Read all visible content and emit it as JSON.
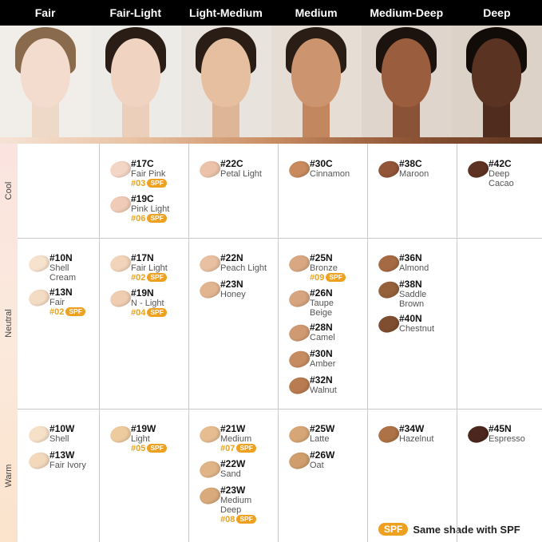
{
  "columns": [
    "Fair",
    "Fair-Light",
    "Light-Medium",
    "Medium",
    "Medium-Deep",
    "Deep"
  ],
  "rows": [
    {
      "label": "Cool",
      "cells": [
        [],
        [
          {
            "code": "#17C",
            "name": "Fair Pink",
            "color": "#f4d6c6",
            "spf": {
              "code": "#03",
              "badge": "SPF"
            }
          },
          {
            "code": "#19C",
            "name": "Pink Light",
            "color": "#f0ccb8",
            "spf": {
              "code": "#06",
              "badge": "SPF"
            }
          }
        ],
        [
          {
            "code": "#22C",
            "name": "Petal Light",
            "color": "#ecc3aa"
          }
        ],
        [
          {
            "code": "#30C",
            "name": "Cinnamon",
            "color": "#c88a5e"
          }
        ],
        [
          {
            "code": "#38C",
            "name": "Maroon",
            "color": "#925538"
          }
        ],
        [
          {
            "code": "#42C",
            "name": "Deep Cacao",
            "color": "#5e3223"
          }
        ]
      ]
    },
    {
      "label": "Neutral",
      "cells": [
        [
          {
            "code": "#10N",
            "name": "Shell Cream",
            "color": "#f7e2cd"
          },
          {
            "code": "#13N",
            "name": "Fair",
            "color": "#f4dbc4",
            "spf": {
              "code": "#02",
              "badge": "SPF"
            }
          }
        ],
        [
          {
            "code": "#17N",
            "name": "Fair Light",
            "color": "#f2d4bb",
            "spf": {
              "code": "#02",
              "badge": "SPF"
            }
          },
          {
            "code": "#19N",
            "name": "N - Light",
            "color": "#efcdb1",
            "spf": {
              "code": "#04",
              "badge": "SPF"
            }
          }
        ],
        [
          {
            "code": "#22N",
            "name": "Peach Light",
            "color": "#e9c0a2"
          },
          {
            "code": "#23N",
            "name": "Honey",
            "color": "#e2b591"
          }
        ],
        [
          {
            "code": "#25N",
            "name": "Bronze",
            "color": "#d9a883",
            "spf": {
              "code": "#09",
              "badge": "SPF"
            }
          },
          {
            "code": "#26N",
            "name": "Taupe Beige",
            "color": "#d6a47e"
          },
          {
            "code": "#28N",
            "name": "Camel",
            "color": "#cf9a72"
          },
          {
            "code": "#30N",
            "name": "Amber",
            "color": "#c68c61"
          },
          {
            "code": "#32N",
            "name": "Walnut",
            "color": "#b97b50"
          }
        ],
        [
          {
            "code": "#36N",
            "name": "Almond",
            "color": "#a56a43"
          },
          {
            "code": "#38N",
            "name": "Saddle Brown",
            "color": "#95603c"
          },
          {
            "code": "#40N",
            "name": "Chestnut",
            "color": "#7f4d2f"
          }
        ],
        []
      ]
    },
    {
      "label": "Warm",
      "cells": [
        [
          {
            "code": "#10W",
            "name": "Shell",
            "color": "#f6e0c8"
          },
          {
            "code": "#13W",
            "name": "Fair Ivory",
            "color": "#f3d8bc"
          }
        ],
        [
          {
            "code": "#19W",
            "name": "Light",
            "color": "#eecb9f",
            "spf": {
              "code": "#05",
              "badge": "SPF"
            }
          }
        ],
        [
          {
            "code": "#21W",
            "name": "Medium",
            "color": "#e6bd91",
            "spf": {
              "code": "#07",
              "badge": "SPF"
            }
          },
          {
            "code": "#22W",
            "name": "Sand",
            "color": "#e0b487"
          },
          {
            "code": "#23W",
            "name": "Medium Deep",
            "color": "#d9ab7c",
            "spf": {
              "code": "#08",
              "badge": "SPF"
            }
          }
        ],
        [
          {
            "code": "#25W",
            "name": "Latte",
            "color": "#d6a676"
          },
          {
            "code": "#26W",
            "name": "Oat",
            "color": "#cf9e6c"
          }
        ],
        [
          {
            "code": "#34W",
            "name": "Hazelnut",
            "color": "#ad7246"
          }
        ],
        [
          {
            "code": "#45N",
            "name": "Espresso",
            "color": "#4b271d"
          }
        ]
      ]
    }
  ],
  "legend": {
    "badge": "SPF",
    "text": "Same shade with SPF"
  }
}
